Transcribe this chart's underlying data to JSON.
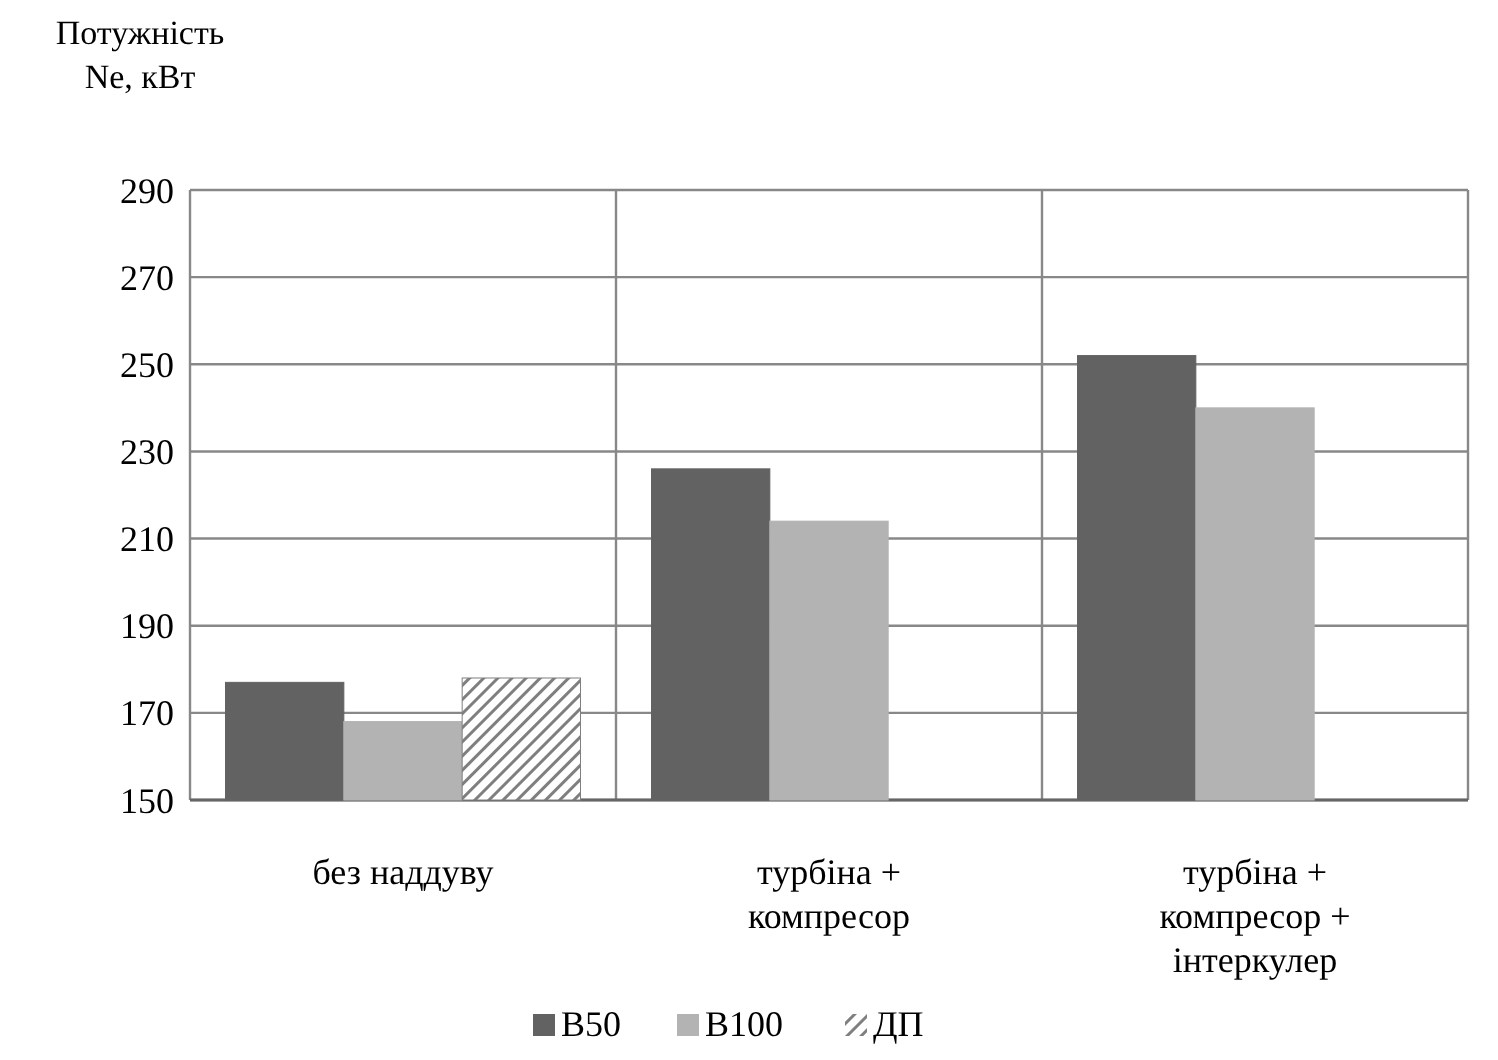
{
  "chart_data": {
    "type": "bar",
    "ylabel": "Потужність Ne, кВт",
    "categories": [
      "без наддуву",
      "турбіна + компресор",
      "турбіна + компресор + інтеркулер"
    ],
    "series": [
      {
        "name": "B50",
        "color": "#626262",
        "values": [
          177,
          226,
          252
        ]
      },
      {
        "name": "B100",
        "color": "#b3b3b3",
        "values": [
          168,
          214,
          240
        ]
      },
      {
        "name": "ДП",
        "color": "#7f7f7f",
        "values": [
          178,
          null,
          null
        ]
      }
    ],
    "ylim": [
      150,
      290
    ],
    "yticks": [
      150,
      170,
      190,
      210,
      230,
      250,
      270,
      290
    ],
    "grid": "y",
    "legend": "bottom"
  }
}
